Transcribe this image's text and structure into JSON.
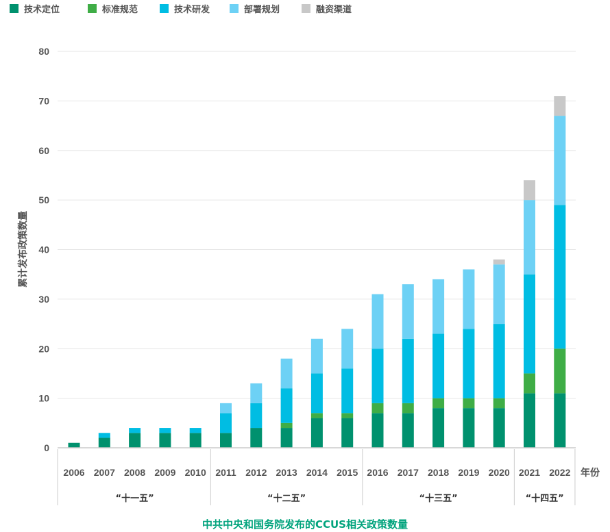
{
  "chart_data": {
    "type": "bar",
    "stacked": true,
    "title": "中共中央和国务院发布的CCUS相关政策数量",
    "ylabel": "累计发布政策数量",
    "xlabel": "年份",
    "ylim": [
      0,
      80
    ],
    "yticks": [
      0,
      10,
      20,
      30,
      40,
      50,
      60,
      70,
      80
    ],
    "grid": true,
    "legend_position": "top-left",
    "categories": [
      "2006",
      "2007",
      "2008",
      "2009",
      "2010",
      "2011",
      "2012",
      "2013",
      "2014",
      "2015",
      "2016",
      "2017",
      "2018",
      "2019",
      "2020",
      "2021",
      "2022"
    ],
    "series": [
      {
        "name": "技术定位",
        "color": "#00916e",
        "values": [
          1,
          2,
          3,
          3,
          3,
          3,
          4,
          4,
          6,
          6,
          7,
          7,
          8,
          8,
          8,
          11,
          11
        ]
      },
      {
        "name": "标准规范",
        "color": "#3fad46",
        "values": [
          0,
          0,
          0,
          0,
          0,
          0,
          0,
          1,
          1,
          1,
          2,
          2,
          2,
          2,
          2,
          4,
          9
        ]
      },
      {
        "name": "技术研发",
        "color": "#00bde3",
        "values": [
          0,
          1,
          1,
          1,
          1,
          4,
          5,
          7,
          8,
          9,
          11,
          13,
          13,
          14,
          15,
          20,
          29
        ]
      },
      {
        "name": "部署规划",
        "color": "#6dd1f5",
        "values": [
          0,
          0,
          0,
          0,
          0,
          2,
          4,
          6,
          7,
          8,
          11,
          11,
          11,
          12,
          12,
          15,
          18
        ]
      },
      {
        "name": "融资渠道",
        "color": "#c8c8c8",
        "values": [
          0,
          0,
          0,
          0,
          0,
          0,
          0,
          0,
          0,
          0,
          0,
          0,
          0,
          0,
          1,
          4,
          4
        ]
      }
    ],
    "groups": [
      {
        "label": "“十一五”",
        "from": 0,
        "to": 4
      },
      {
        "label": "“十二五”",
        "from": 5,
        "to": 9
      },
      {
        "label": "“十三五”",
        "from": 10,
        "to": 14
      },
      {
        "label": "“十四五”",
        "from": 15,
        "to": 16
      }
    ],
    "title_color": "#00a37c",
    "axis_color": "#cccccc",
    "grid_color": "#e6e6e6"
  }
}
